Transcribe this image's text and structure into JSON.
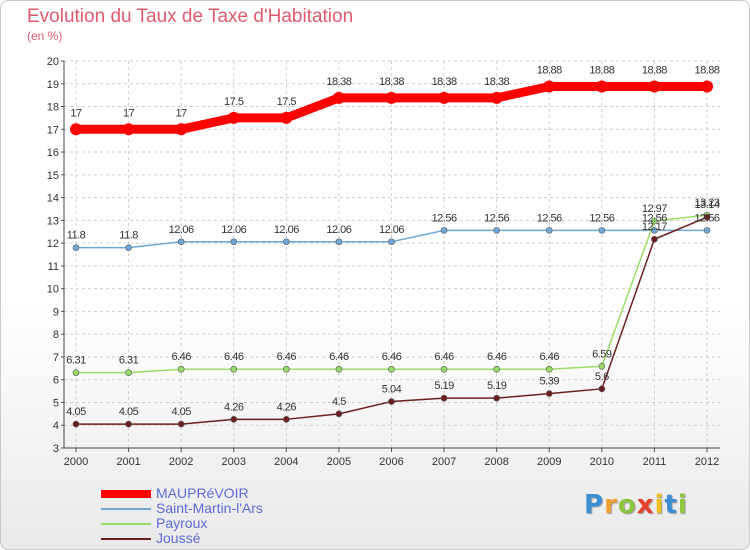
{
  "chart_data": {
    "type": "line",
    "title": "Evolution du Taux de Taxe d'Habitation",
    "subtitle": "(en %)",
    "x": [
      "2000",
      "2001",
      "2002",
      "2003",
      "2004",
      "2005",
      "2006",
      "2007",
      "2008",
      "2009",
      "2010",
      "2011",
      "2012"
    ],
    "ylim": [
      3,
      20
    ],
    "yticks": [
      "3",
      "4",
      "5",
      "6",
      "7",
      "8",
      "9",
      "10",
      "11",
      "12",
      "13",
      "14",
      "15",
      "16",
      "17",
      "18",
      "19",
      "20"
    ],
    "grid": true,
    "legend_position": "bottom-left",
    "series": [
      {
        "name": "MAUPRéVOIR",
        "color": "#ff0000",
        "values": [
          17,
          17,
          17,
          17.5,
          17.5,
          18.38,
          18.38,
          18.38,
          18.38,
          18.88,
          18.88,
          18.88,
          18.88
        ],
        "labels": [
          "17",
          "17",
          "17",
          "17.5",
          "17.5",
          "18.38",
          "18.38",
          "18.38",
          "18.38",
          "18.88",
          "18.88",
          "18.88",
          "18.88"
        ]
      },
      {
        "name": "Saint-Martin-l'Ars",
        "color": "#6fa8d6",
        "values": [
          11.8,
          11.8,
          12.06,
          12.06,
          12.06,
          12.06,
          12.06,
          12.56,
          12.56,
          12.56,
          12.56,
          12.56,
          12.56
        ],
        "labels": [
          "11.8",
          "11.8",
          "12.06",
          "12.06",
          "12.06",
          "12.06",
          "12.06",
          "12.56",
          "12.56",
          "12.56",
          "12.56",
          "12.56",
          "12.56"
        ]
      },
      {
        "name": "Payroux",
        "color": "#99dd66",
        "values": [
          6.31,
          6.31,
          6.46,
          6.46,
          6.46,
          6.46,
          6.46,
          6.46,
          6.46,
          6.46,
          6.59,
          12.97,
          13.23
        ],
        "labels": [
          "6.31",
          "6.31",
          "6.46",
          "6.46",
          "6.46",
          "6.46",
          "6.46",
          "6.46",
          "6.46",
          "6.46",
          "6.59",
          "12.97",
          "13.23"
        ]
      },
      {
        "name": "Joussé",
        "color": "#6b1f1f",
        "values": [
          4.05,
          4.05,
          4.05,
          4.26,
          4.26,
          4.5,
          5.04,
          5.19,
          5.19,
          5.39,
          5.6,
          12.17,
          13.14
        ],
        "labels": [
          "4.05",
          "4.05",
          "4.05",
          "4.26",
          "4.26",
          "4.5",
          "5.04",
          "5.19",
          "5.19",
          "5.39",
          "5.6",
          "12.17",
          "13.14"
        ]
      }
    ]
  },
  "logo": {
    "letters": [
      "P",
      "r",
      "o",
      "x",
      "i",
      "t",
      "i"
    ],
    "colors": [
      "#3b8fd4",
      "#f0a030",
      "#8cc63f",
      "#e8402a",
      "#f0c020",
      "#3b8fd4",
      "#8cc63f"
    ]
  }
}
